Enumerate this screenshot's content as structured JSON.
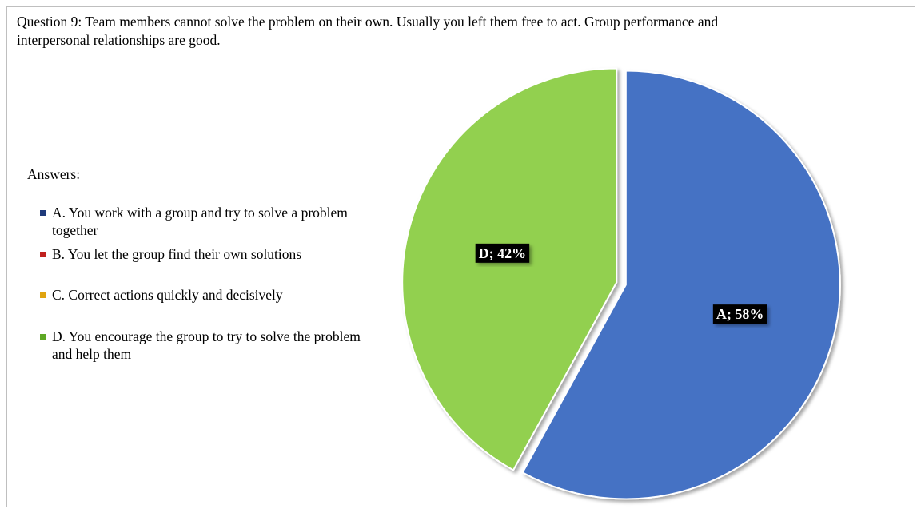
{
  "question": "Question 9: Team members cannot solve the problem on their own. Usually you left them free to act. Group performance and interpersonal relationships are good.",
  "legend": {
    "title": "Answers:",
    "items": [
      {
        "label": "A. You work with a group and try to solve a problem together",
        "color": "#1f3a7a"
      },
      {
        "label": "B. You let the group find their own solutions",
        "color": "#c0211f"
      },
      {
        "label": "C. Correct actions quickly and decisively",
        "color": "#e0a40f"
      },
      {
        "label": "D. You encourage the group to try to solve the problem and help them",
        "color": "#5ea825"
      }
    ]
  },
  "chart_data": {
    "type": "pie",
    "categories": [
      "A",
      "B",
      "C",
      "D"
    ],
    "values": [
      58,
      0,
      0,
      42
    ],
    "value_unit": "%",
    "colors": [
      "#4472c4",
      "#c0504d",
      "#f2a900",
      "#92d050"
    ],
    "data_labels": [
      "A; 58%",
      "",
      "",
      "D; 42%"
    ],
    "legend_position": "left"
  }
}
